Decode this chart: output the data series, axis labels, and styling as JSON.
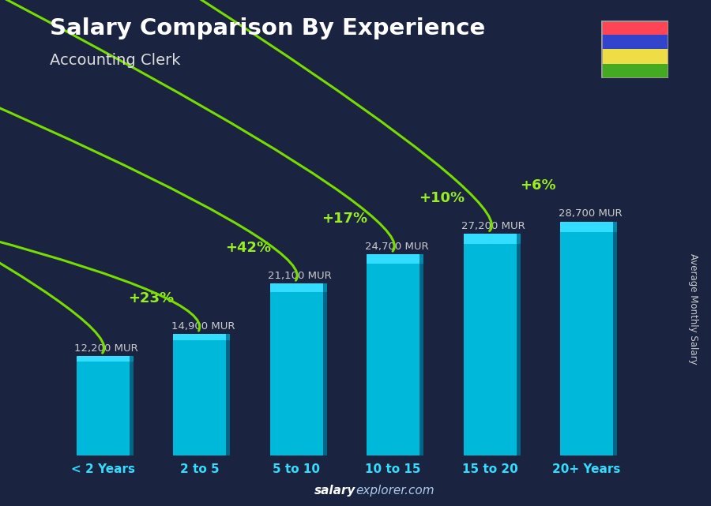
{
  "title": "Salary Comparison By Experience",
  "subtitle": "Accounting Clerk",
  "categories": [
    "< 2 Years",
    "2 to 5",
    "5 to 10",
    "10 to 15",
    "15 to 20",
    "20+ Years"
  ],
  "values": [
    12200,
    14900,
    21100,
    24700,
    27200,
    28700
  ],
  "labels": [
    "12,200 MUR",
    "14,900 MUR",
    "21,100 MUR",
    "24,700 MUR",
    "27,200 MUR",
    "28,700 MUR"
  ],
  "pct_changes": [
    "+23%",
    "+42%",
    "+17%",
    "+10%",
    "+6%"
  ],
  "bar_color_main": "#00b8d9",
  "bar_color_light": "#00d4f5",
  "bar_color_dark": "#0088aa",
  "bar_color_side": "#006688",
  "bar_color_top": "#33ddff",
  "bg_color": "#1a2340",
  "title_color": "#ffffff",
  "subtitle_color": "#dddddd",
  "label_color": "#cccccc",
  "pct_color": "#99ee22",
  "arrow_color": "#77dd00",
  "xlabel_color": "#33ddff",
  "ylabel_text": "Average Monthly Salary",
  "footer_salary_color": "#ffffff",
  "footer_explorer_color": "#aaaaaa",
  "footer_text": "salaryexplorer.com",
  "ylim": [
    0,
    36000
  ],
  "flag_colors_top_to_bottom": [
    "#ff4455",
    "#3344cc",
    "#eedd44",
    "#44aa22"
  ],
  "flag_border": "#666666"
}
